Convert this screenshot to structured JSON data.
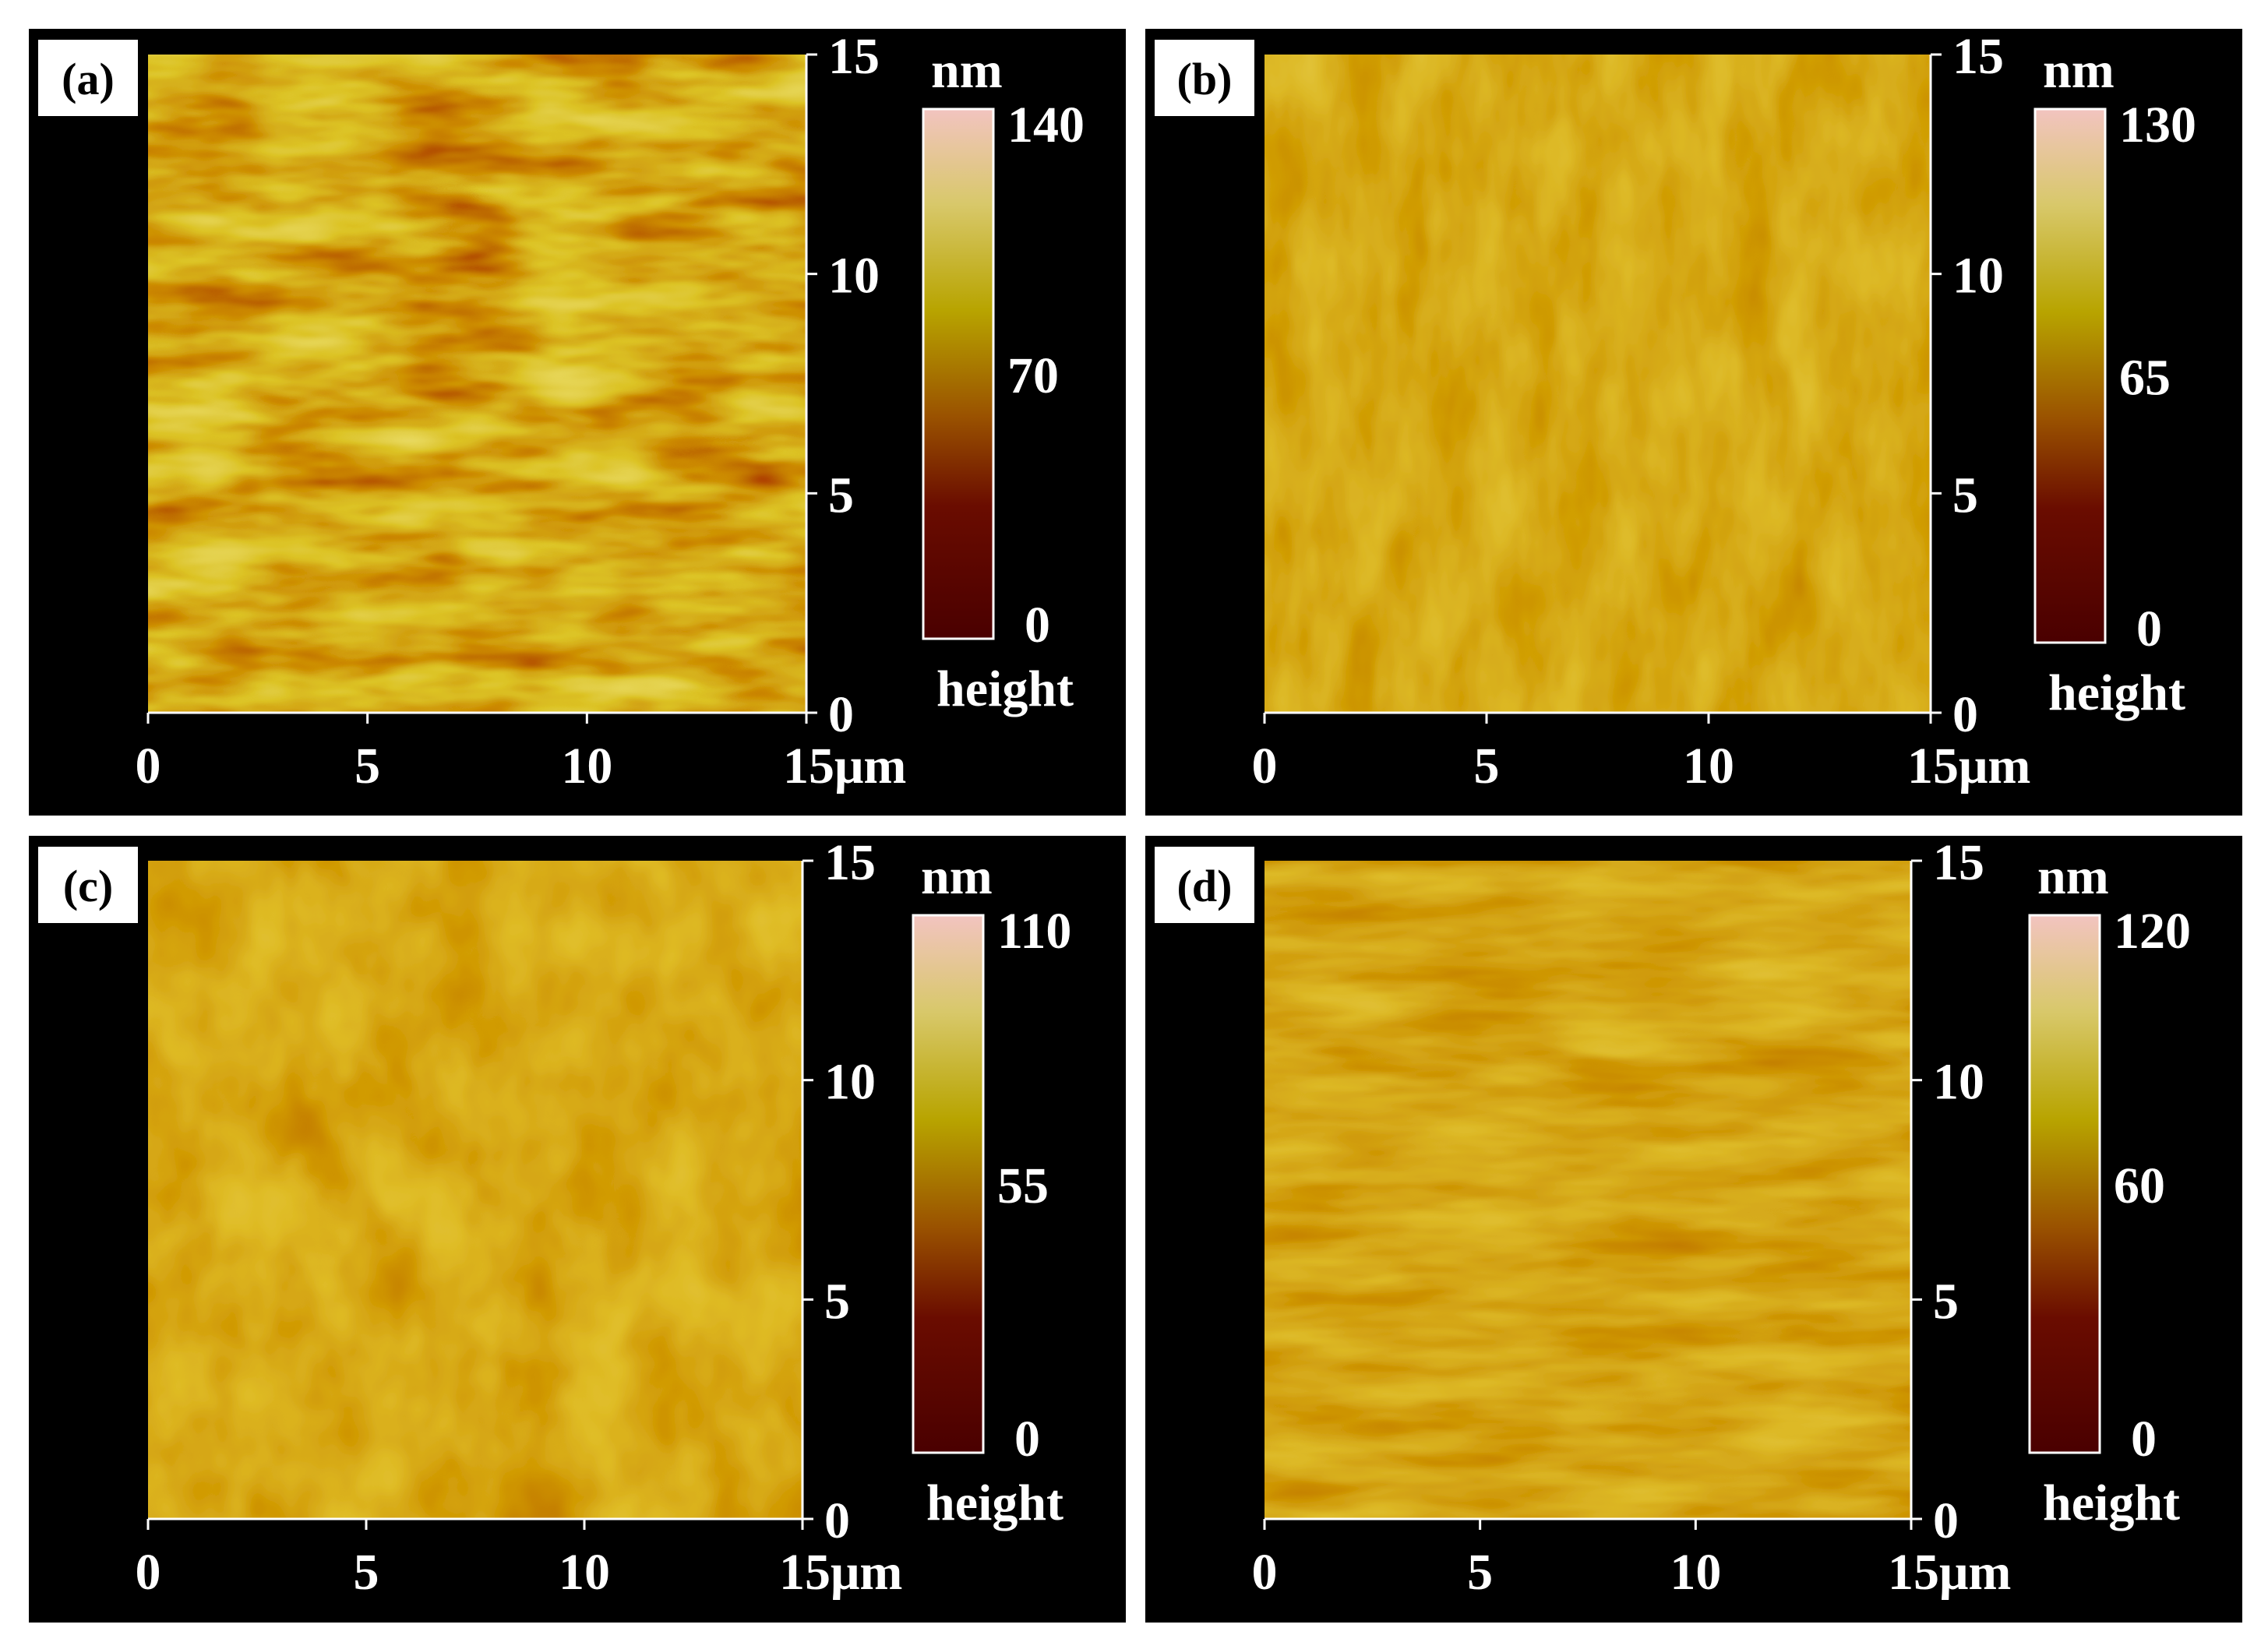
{
  "panels": [
    {
      "id": "a",
      "label": "(a)",
      "x_ticks": [
        "0",
        "5",
        "10",
        "15μm"
      ],
      "y_ticks": [
        "15",
        "10",
        "5",
        "0"
      ],
      "colorbar": {
        "unit": "nm",
        "max": "140",
        "mid": "70",
        "min": "0",
        "caption": "height"
      }
    },
    {
      "id": "b",
      "label": "(b)",
      "x_ticks": [
        "0",
        "5",
        "10",
        "15μm"
      ],
      "y_ticks": [
        "15",
        "10",
        "5",
        "0"
      ],
      "colorbar": {
        "unit": "nm",
        "max": "130",
        "mid": "65",
        "min": "0",
        "caption": "height"
      }
    },
    {
      "id": "c",
      "label": "(c)",
      "x_ticks": [
        "0",
        "5",
        "10",
        "15μm"
      ],
      "y_ticks": [
        "15",
        "10",
        "5",
        "0"
      ],
      "colorbar": {
        "unit": "nm",
        "max": "110",
        "mid": "55",
        "min": "0",
        "caption": "height"
      }
    },
    {
      "id": "d",
      "label": "(d)",
      "x_ticks": [
        "0",
        "5",
        "10",
        "15μm"
      ],
      "y_ticks": [
        "15",
        "10",
        "5",
        "0"
      ],
      "colorbar": {
        "unit": "nm",
        "max": "120",
        "mid": "60",
        "min": "0",
        "caption": "height"
      }
    }
  ],
  "colormap": [
    "#f2c4c0",
    "#d8c85a",
    "#b4a400",
    "#9a5000",
    "#6a0800",
    "#4a0000"
  ]
}
